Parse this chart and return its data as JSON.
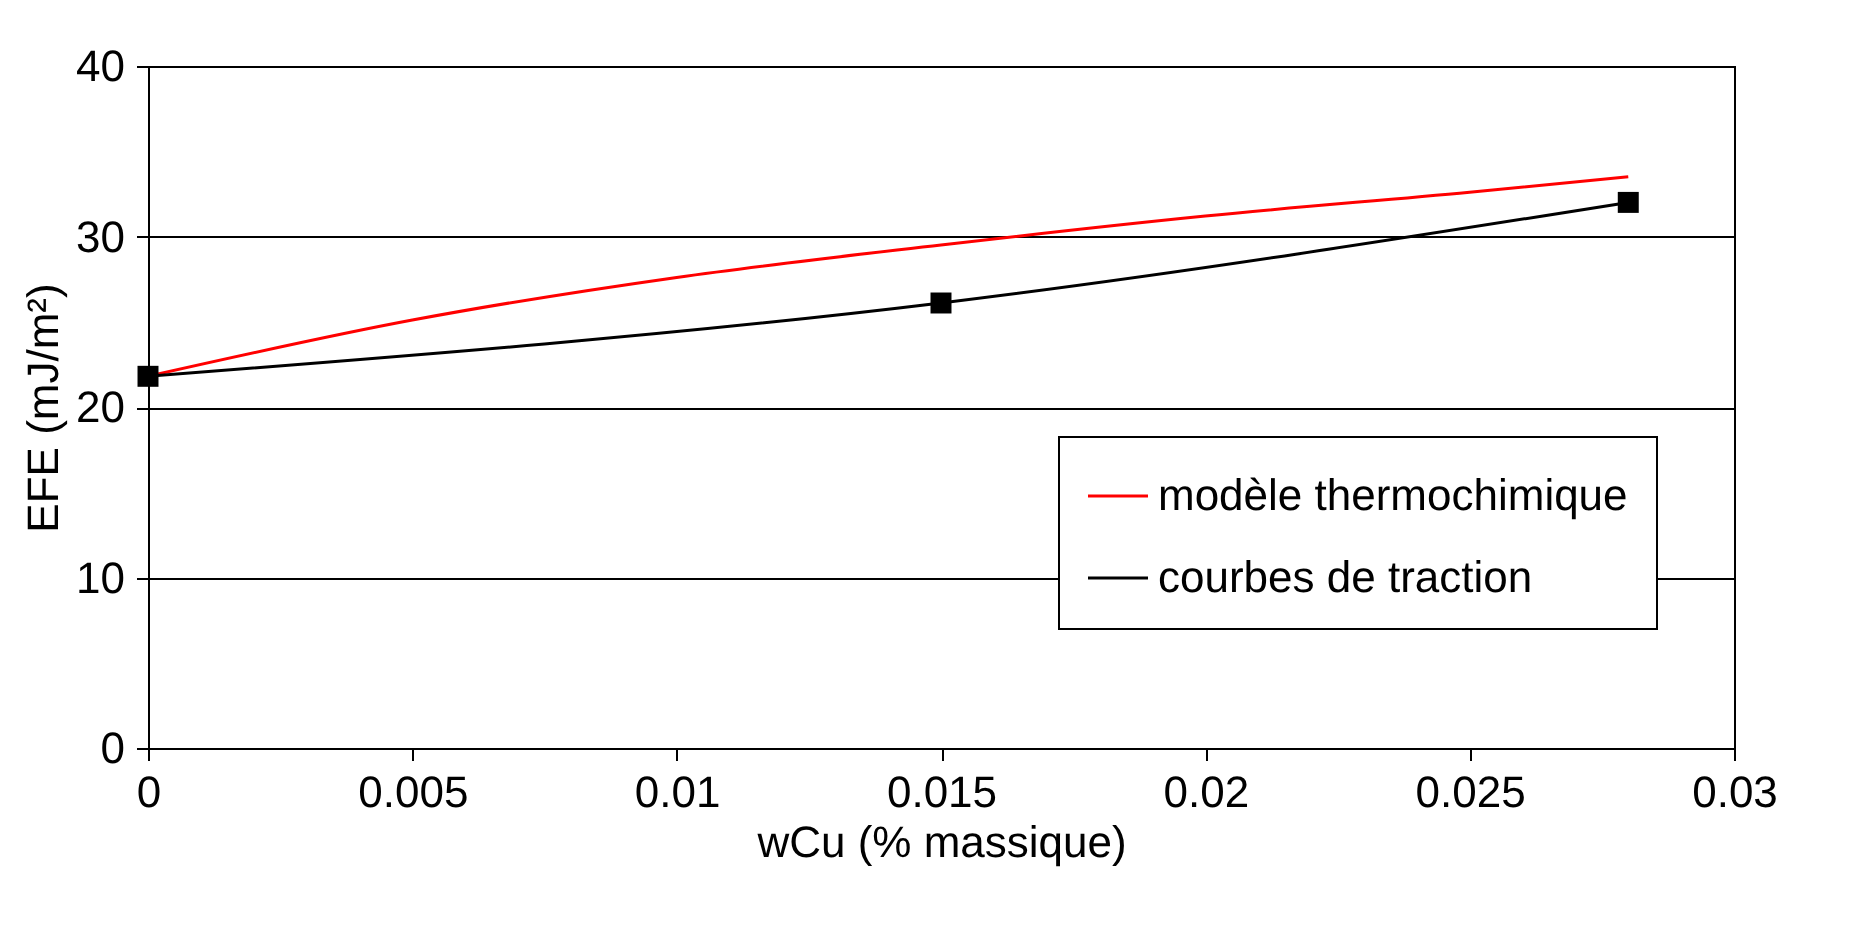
{
  "chart_data": {
    "type": "line",
    "xlabel": "wCu (% massique)",
    "ylabel": "EFE (mJ/m²)",
    "xlim": [
      0,
      0.03
    ],
    "xticks": [
      0,
      0.005,
      0.01,
      0.015,
      0.02,
      0.025,
      0.03
    ],
    "ylim": [
      0,
      40
    ],
    "yticks": [
      0,
      10,
      20,
      30,
      40
    ],
    "grid": "y",
    "legend": "bottom right",
    "series": [
      {
        "name": "modèle thermochimique",
        "color": "#ff0000",
        "marker": "none",
        "x": [
          0,
          0.005,
          0.01,
          0.015,
          0.02,
          0.025,
          0.028
        ],
        "values": [
          21.8,
          25.1,
          27.6,
          29.5,
          31.2,
          32.6,
          33.5
        ]
      },
      {
        "name": "courbes de traction",
        "color": "#000000",
        "marker": "square",
        "x": [
          0,
          0.015,
          0.028
        ],
        "values": [
          21.8,
          26.1,
          32.0
        ]
      }
    ]
  }
}
